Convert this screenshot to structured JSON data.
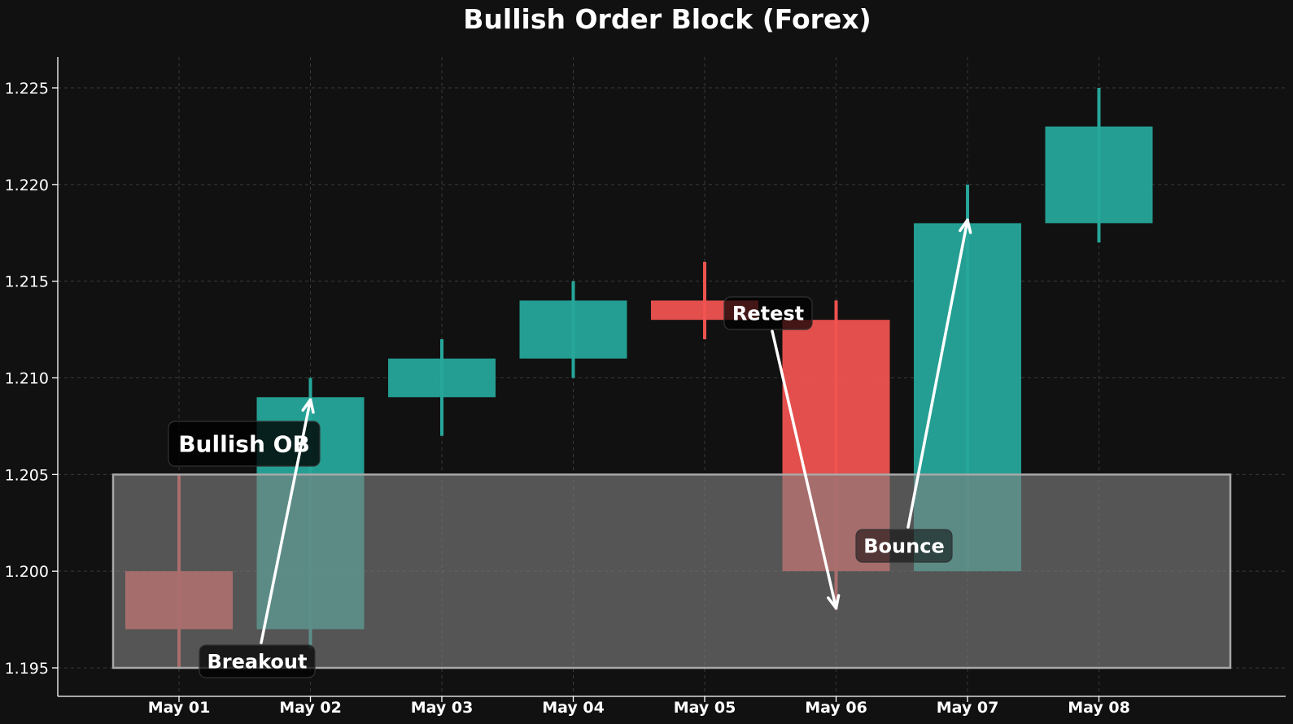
{
  "chart_data": {
    "type": "candlestick",
    "title": "Bullish Order Block (Forex)",
    "xlabel": "",
    "ylabel": "",
    "categories": [
      "May 01",
      "May 02",
      "May 03",
      "May 04",
      "May 05",
      "May 06",
      "May 07",
      "May 08"
    ],
    "candles": [
      {
        "date": "May 01",
        "open": 1.2,
        "high": 1.205,
        "low": 1.195,
        "close": 1.197
      },
      {
        "date": "May 02",
        "open": 1.197,
        "high": 1.21,
        "low": 1.196,
        "close": 1.209
      },
      {
        "date": "May 03",
        "open": 1.209,
        "high": 1.212,
        "low": 1.207,
        "close": 1.211
      },
      {
        "date": "May 04",
        "open": 1.211,
        "high": 1.215,
        "low": 1.21,
        "close": 1.214
      },
      {
        "date": "May 05",
        "open": 1.214,
        "high": 1.216,
        "low": 1.212,
        "close": 1.213
      },
      {
        "date": "May 06",
        "open": 1.213,
        "high": 1.214,
        "low": 1.198,
        "close": 1.2
      },
      {
        "date": "May 07",
        "open": 1.2,
        "high": 1.22,
        "low": 1.2,
        "close": 1.218
      },
      {
        "date": "May 08",
        "open": 1.218,
        "high": 1.225,
        "low": 1.217,
        "close": 1.223
      }
    ],
    "ylim": [
      1.1935,
      1.2265
    ],
    "yticks": [
      "1.195",
      "1.200",
      "1.205",
      "1.210",
      "1.215",
      "1.220",
      "1.225"
    ],
    "grid": true,
    "zone": {
      "label": "Bullish OB",
      "low": 1.195,
      "high": 1.205
    },
    "annotations": [
      {
        "text": "Breakout",
        "target": {
          "date": "May 02",
          "y": 1.209
        }
      },
      {
        "text": "Retest",
        "target": {
          "date": "May 06",
          "y": 1.198
        }
      },
      {
        "text": "Bounce",
        "target": {
          "date": "May 07",
          "y": 1.218
        }
      }
    ],
    "colors": {
      "background": "#111111",
      "bullish": "#26a69a",
      "bearish": "#ef5350",
      "zone": "#808080",
      "text": "#ffffff"
    }
  }
}
